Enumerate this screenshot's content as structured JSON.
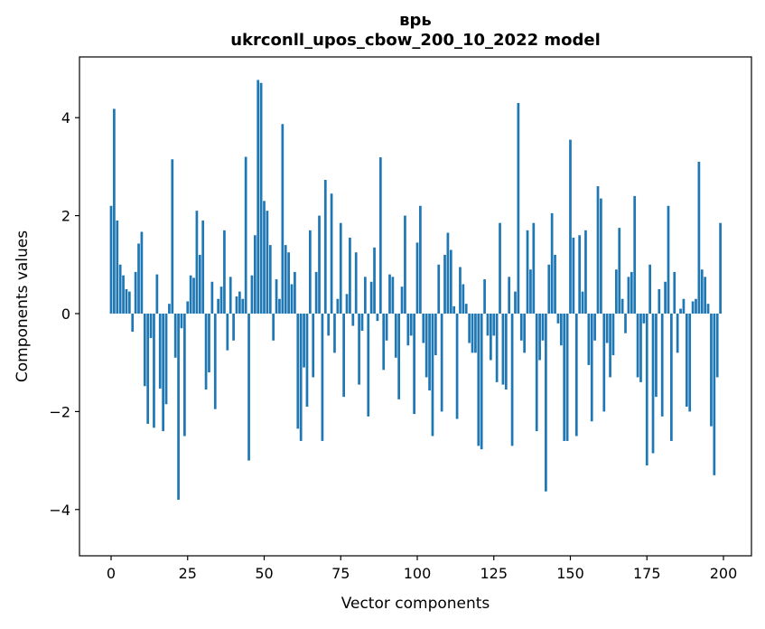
{
  "figure": {
    "title_line1": "врь",
    "title_line2": "ukrconll_upos_cbow_200_10_2022 model"
  },
  "chart_data": {
    "type": "bar",
    "title": "врь",
    "subtitle": "ukrconll_upos_cbow_200_10_2022 model",
    "xlabel": "Vector components",
    "ylabel": "Components values",
    "bar_color": "#1f77b4",
    "grid": false,
    "legend": null,
    "x_start": 0,
    "x_step": 1,
    "n_bars": 200,
    "xticks": [
      0,
      25,
      50,
      75,
      100,
      125,
      150,
      175,
      200
    ],
    "yticks": [
      -4,
      -2,
      0,
      2,
      4
    ],
    "ytick_labels": [
      "−4",
      "−2",
      "0",
      "2",
      "4"
    ],
    "xtick_labels": [
      "0",
      "25",
      "50",
      "75",
      "100",
      "125",
      "150",
      "175",
      "200"
    ],
    "xlim": [
      -10.3,
      209.1
    ],
    "ylim": [
      -4.95,
      5.23
    ],
    "values": [
      2.2,
      4.18,
      1.9,
      1.0,
      0.78,
      0.5,
      0.45,
      -0.37,
      0.85,
      1.43,
      1.67,
      -1.48,
      -2.25,
      -0.5,
      -2.33,
      0.8,
      -1.53,
      -2.4,
      -1.85,
      0.2,
      3.15,
      -0.9,
      -3.8,
      -0.3,
      -2.5,
      0.25,
      0.78,
      0.73,
      2.1,
      1.2,
      1.9,
      -1.55,
      -1.2,
      0.65,
      -1.95,
      0.3,
      0.55,
      1.7,
      -0.75,
      0.75,
      -0.55,
      0.35,
      0.45,
      0.3,
      3.2,
      -3.0,
      0.78,
      1.6,
      4.77,
      4.71,
      2.3,
      2.1,
      1.4,
      -0.55,
      0.7,
      0.3,
      3.87,
      1.4,
      1.25,
      0.6,
      0.85,
      -2.35,
      -2.6,
      -1.1,
      -1.9,
      1.7,
      -1.3,
      0.85,
      2.0,
      -2.6,
      2.73,
      -0.45,
      2.45,
      -0.8,
      0.3,
      1.85,
      -1.7,
      0.4,
      1.55,
      -0.25,
      1.25,
      -1.45,
      -0.35,
      0.75,
      -2.1,
      0.65,
      1.35,
      -0.15,
      3.19,
      -1.15,
      -0.55,
      0.8,
      0.75,
      -0.9,
      -1.75,
      0.55,
      2.0,
      -0.65,
      -0.45,
      -2.05,
      1.45,
      2.2,
      -0.6,
      -1.3,
      -1.57,
      -2.5,
      -0.85,
      1.0,
      -2.0,
      1.2,
      1.65,
      1.3,
      0.15,
      -2.15,
      0.95,
      0.6,
      0.2,
      -0.6,
      -0.8,
      -0.8,
      -2.7,
      -2.77,
      0.7,
      -0.45,
      -0.95,
      -0.45,
      -1.4,
      1.85,
      -1.45,
      -1.55,
      0.75,
      -2.7,
      0.45,
      4.3,
      -0.55,
      -0.8,
      1.7,
      0.9,
      1.85,
      -2.4,
      -0.95,
      -0.55,
      -3.63,
      1.0,
      2.05,
      1.2,
      -0.2,
      -0.65,
      -2.6,
      -2.6,
      3.55,
      1.55,
      -2.5,
      1.6,
      0.45,
      1.7,
      -1.05,
      -2.2,
      -0.55,
      2.6,
      2.35,
      -2.0,
      -0.6,
      -1.3,
      -0.85,
      0.9,
      1.75,
      0.3,
      -0.4,
      0.75,
      0.85,
      2.4,
      -1.3,
      -1.4,
      -0.2,
      -3.1,
      1.0,
      -2.85,
      -1.7,
      0.5,
      -2.1,
      0.65,
      2.2,
      -2.6,
      0.85,
      -0.8,
      0.1,
      0.3,
      -1.9,
      -2.0,
      0.25,
      0.3,
      3.1,
      0.9,
      0.75,
      0.2,
      -2.3,
      -3.3,
      -1.3,
      1.85
    ]
  }
}
